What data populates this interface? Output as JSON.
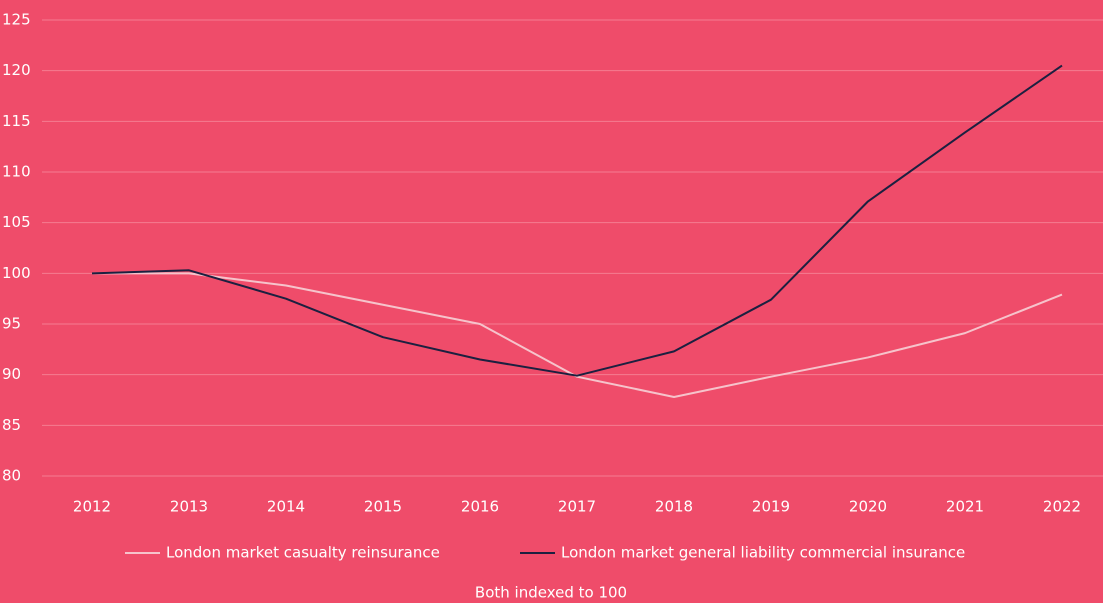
{
  "chart_data": {
    "type": "line",
    "subtitle": "Both indexed to 100",
    "x": [
      "2012",
      "2013",
      "2014",
      "2015",
      "2016",
      "2017",
      "2018",
      "2019",
      "2020",
      "2021",
      "2022"
    ],
    "series": [
      {
        "name": "London market casualty reinsurance",
        "color": "#f6c3cb",
        "values": [
          100,
          100,
          98.8,
          96.9,
          95,
          89.8,
          87.8,
          89.8,
          91.7,
          94.1,
          97.9
        ]
      },
      {
        "name": "London market general liability commercial insurance",
        "color": "#1c2040",
        "values": [
          100,
          100.3,
          97.5,
          93.7,
          91.5,
          89.9,
          92.3,
          97.4,
          107.1,
          113.9,
          120.5
        ]
      }
    ],
    "ylim": [
      80,
      125
    ],
    "yticks": [
      80,
      85,
      90,
      95,
      100,
      105,
      110,
      115,
      120,
      125
    ],
    "grid": true,
    "legend": "bottom"
  }
}
